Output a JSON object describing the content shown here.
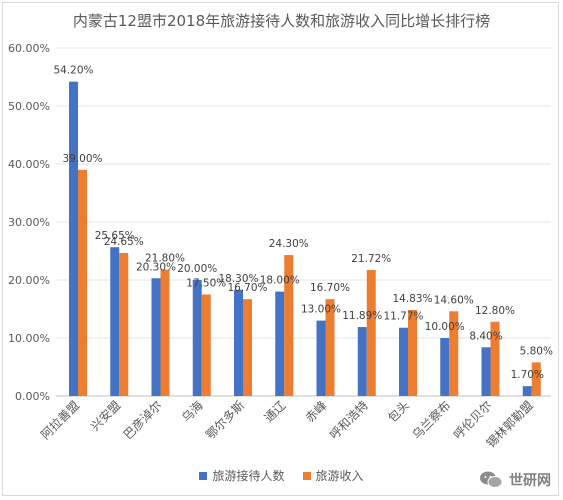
{
  "chart_data": {
    "type": "bar",
    "title": "内蒙古12盟市2018年旅游接待人数和旅游收入同比增长排行榜",
    "categories": [
      "阿拉善盟",
      "兴安盟",
      "巴彦淖尔",
      "乌海",
      "鄂尔多斯",
      "通辽",
      "赤峰",
      "呼和浩特",
      "包头",
      "乌兰察布",
      "呼伦贝尔",
      "锡林郭勒盟"
    ],
    "series": [
      {
        "name": "旅游接待人数",
        "color": "#4472C4",
        "values": [
          54.2,
          25.65,
          20.3,
          20.0,
          18.3,
          18.0,
          13.0,
          11.89,
          11.77,
          10.0,
          8.4,
          1.7
        ],
        "labels": [
          "54.20%",
          "25.65%",
          "20.30%",
          "20.00%",
          "18.30%",
          "18.00%",
          "13.00%",
          "11.89%",
          "11.77%",
          "10.00%",
          "8.40%",
          "1.70%"
        ]
      },
      {
        "name": "旅游收入",
        "color": "#ED7D31",
        "values": [
          39.0,
          24.65,
          21.8,
          17.5,
          16.7,
          24.3,
          16.7,
          21.72,
          14.83,
          14.6,
          12.8,
          5.8
        ],
        "labels": [
          "39.00%",
          "24.65%",
          "21.80%",
          "17.50%",
          "16.70%",
          "24.30%",
          "16.70%",
          "21.72%",
          "14.83%",
          "14.60%",
          "12.80%",
          "5.80%"
        ]
      }
    ],
    "ylim": [
      0,
      60
    ],
    "yticks": [
      "0.00%",
      "10.00%",
      "20.00%",
      "30.00%",
      "40.00%",
      "50.00%",
      "60.00%"
    ],
    "ytick_values": [
      0,
      10,
      20,
      30,
      40,
      50,
      60
    ],
    "grid": true,
    "legend_position": "bottom"
  },
  "watermark": "世研网"
}
